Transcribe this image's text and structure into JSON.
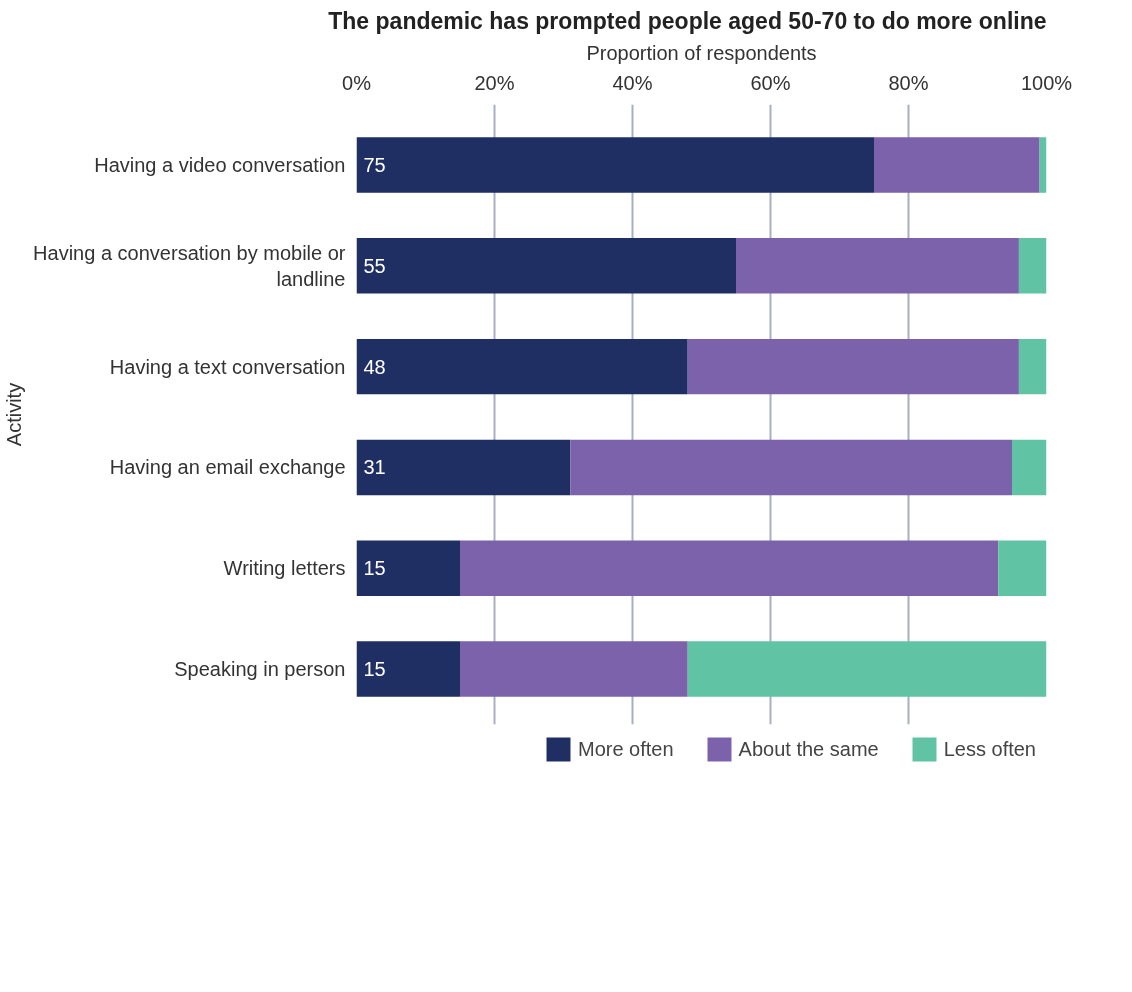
{
  "chart_data": {
    "type": "bar",
    "orientation": "horizontal",
    "stacked": true,
    "title": "The pandemic has prompted people aged 50-70 to do more online",
    "xlabel": "Proportion of respondents",
    "ylabel": "Activity",
    "categories": [
      "Having a video conversation",
      "Having a conversation by mobile or landline",
      "Having a text conversation",
      "Having an email exchange",
      "Writing letters",
      "Speaking in person"
    ],
    "series": [
      {
        "name": "More often",
        "color": "#1f2f63",
        "values": [
          75,
          55,
          48,
          31,
          15,
          15
        ],
        "value_labels": [
          "75",
          "55",
          "48",
          "31",
          "15",
          "15"
        ]
      },
      {
        "name": "About the same",
        "color": "#7b62ab",
        "values": [
          24,
          41,
          48,
          64,
          78,
          33
        ]
      },
      {
        "name": "Less often",
        "color": "#5fc3a4",
        "values": [
          1,
          4,
          4,
          5,
          7,
          52
        ]
      }
    ],
    "xlim": [
      0,
      100
    ],
    "xticks": [
      {
        "value": 0,
        "label": "0%"
      },
      {
        "value": 20,
        "label": "20%"
      },
      {
        "value": 40,
        "label": "40%"
      },
      {
        "value": 60,
        "label": "60%"
      },
      {
        "value": 80,
        "label": "80%"
      },
      {
        "value": 100,
        "label": "100%"
      }
    ],
    "grid": "x",
    "legend": "bottom"
  }
}
